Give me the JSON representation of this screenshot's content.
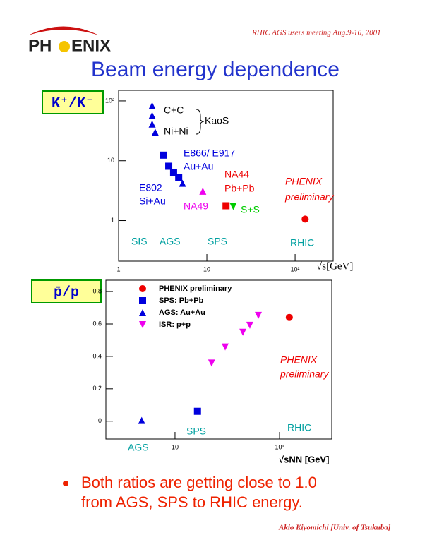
{
  "header": "RHIC AGS  users meeting   Aug.9-10, 2001",
  "logo_left": "PH",
  "logo_right": "ENIX",
  "title": "Beam energy dependence",
  "chart_data": [
    {
      "type": "scatter",
      "ylabel": "K⁺/K⁻",
      "xlabel": "√s[GeV]",
      "xlog": true,
      "ylog": true,
      "xlim": [
        1,
        270
      ],
      "ylim": [
        0.21,
        150
      ],
      "xticks": [
        1,
        10,
        {
          "value": 100,
          "label": "10²"
        }
      ],
      "yticks": [
        1,
        10,
        {
          "value": 100,
          "label": "10²"
        }
      ],
      "series": [
        {
          "name": "KaoS",
          "color": "#0000dd",
          "name_color": "#000000",
          "marker": "triangle",
          "x": [
            2.4,
            2.4,
            2.4,
            2.6
          ],
          "values": [
            83,
            57,
            41,
            30
          ]
        },
        {
          "name": "E866/ E917",
          "color": "#0000dd",
          "marker": "square",
          "x": [
            3.2,
            3.7,
            4.2,
            4.8
          ],
          "values": [
            12.4,
            8.1,
            6.3,
            5.2
          ]
        },
        {
          "name": "E802",
          "color": "#0000dd",
          "marker": "triangle",
          "x": [
            5.3
          ],
          "values": [
            4.2
          ]
        },
        {
          "name": "NA49",
          "color": "#ee00ee",
          "marker": "triangle",
          "x": [
            9.0
          ],
          "values": [
            3.1
          ]
        },
        {
          "name": "NA44",
          "color": "#ee0000",
          "marker": "square",
          "x": [
            16.5
          ],
          "values": [
            1.77
          ]
        },
        {
          "name": "S+S",
          "color": "#00cc00",
          "marker": "triangle-down",
          "x": [
            19.9
          ],
          "values": [
            1.72
          ]
        },
        {
          "name": "PHENIX",
          "color": "#ee0000",
          "marker": "circle",
          "x": [
            130
          ],
          "values": [
            1.06
          ]
        }
      ],
      "annotations": [
        {
          "text": "C+C",
          "color": "#000000"
        },
        {
          "text": "Ni+Ni",
          "color": "#000000"
        },
        {
          "text": "Au+Au",
          "color": "#0000dd"
        },
        {
          "text": "Si+Au",
          "color": "#0000dd"
        },
        {
          "text": "Pb+Pb",
          "color": "#ee0000"
        },
        {
          "text": "preliminary",
          "color": "#ee0000"
        },
        {
          "text": "SIS",
          "color": "#00a0a0"
        },
        {
          "text": "AGS",
          "color": "#00a0a0"
        },
        {
          "text": "SPS",
          "color": "#00a0a0"
        },
        {
          "text": "RHIC",
          "color": "#00a0a0"
        }
      ]
    },
    {
      "type": "scatter",
      "ylabel": "p̄/p",
      "xlabel": "√sNN [GeV]",
      "xlog": true,
      "ylog": false,
      "xlim": [
        2.18,
        316
      ],
      "ylim": [
        -0.11,
        0.87
      ],
      "xticks": [
        10,
        {
          "value": 100,
          "label": "10²"
        }
      ],
      "yticks": [
        0,
        0.2,
        0.4,
        0.6,
        0.8
      ],
      "legend": "upper left",
      "series": [
        {
          "name": "PHENIX preliminary",
          "color": "#ee0000",
          "marker": "circle",
          "x": [
            124
          ],
          "values": [
            0.64
          ]
        },
        {
          "name": "SPS: Pb+Pb",
          "color": "#0000dd",
          "marker": "square",
          "x": [
            16.4
          ],
          "values": [
            0.061
          ]
        },
        {
          "name": "AGS: Au+Au",
          "color": "#0000dd",
          "marker": "triangle",
          "x": [
            4.8
          ],
          "values": [
            0.005
          ]
        },
        {
          "name": "ISR: p+p",
          "color": "#ee00ee",
          "marker": "triangle-down",
          "x": [
            22.4,
            30.2,
            44.6,
            52,
            62.7
          ],
          "values": [
            0.359,
            0.458,
            0.549,
            0.592,
            0.653
          ]
        }
      ],
      "annotations": [
        {
          "text": "PHENIX",
          "color": "#ee0000"
        },
        {
          "text": "preliminary",
          "color": "#ee0000"
        },
        {
          "text": "SPS",
          "color": "#00a0a0"
        },
        {
          "text": "RHIC",
          "color": "#00a0a0"
        },
        {
          "text": "AGS",
          "color": "#00a0a0"
        }
      ]
    }
  ],
  "bullet": [
    "Both ratios are getting close to 1.0",
    "from AGS, SPS to RHIC energy."
  ],
  "footer": "Akio Kiyomichi [Univ. of Tsukuba]"
}
